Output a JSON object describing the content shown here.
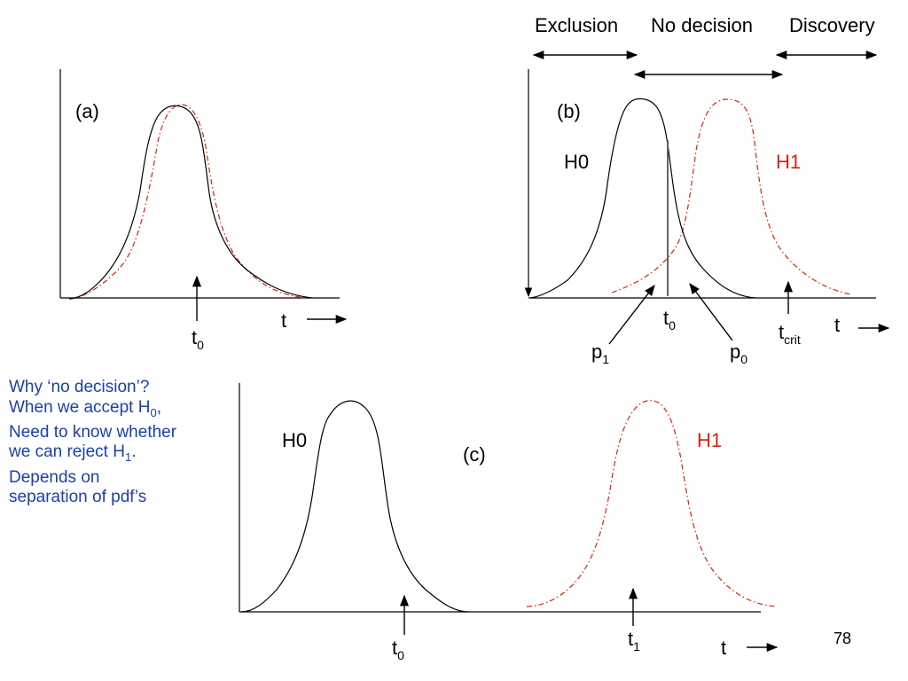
{
  "slide_number": "78",
  "colors": {
    "h0_curve": "#000000",
    "h1_curve": "#e02010",
    "note_text": "#1a3fb0"
  },
  "panel_a": {
    "label": "(a)",
    "axis_var": "t",
    "marker": {
      "base": "t",
      "sub": "0"
    }
  },
  "panel_b": {
    "label": "(b)",
    "h0_label": "H0",
    "h1_label": "H1",
    "regions": [
      "Exclusion",
      "No decision",
      "Discovery"
    ],
    "axis_var": "t",
    "marker_t0": {
      "base": "t",
      "sub": "0"
    },
    "marker_tcrit": {
      "base": "t",
      "sub": "crit"
    },
    "p1": {
      "base": "p",
      "sub": "1"
    },
    "p0": {
      "base": "p",
      "sub": "0"
    }
  },
  "panel_c": {
    "label": "(c)",
    "h0_label": "H0",
    "h1_label": "H1",
    "axis_var": "t",
    "marker_t0": {
      "base": "t",
      "sub": "0"
    },
    "marker_t1": {
      "base": "t",
      "sub": "1"
    }
  },
  "notes": [
    {
      "text": "Why ‘no decision’?"
    },
    {
      "text": "When we accept H",
      "sub": "0",
      "after": ","
    },
    {
      "text": "Need to know whether"
    },
    {
      "text": "we can reject H",
      "sub": "1",
      "after": "."
    },
    {
      "text": "Depends on"
    },
    {
      "text": "separation of pdf’s"
    }
  ]
}
